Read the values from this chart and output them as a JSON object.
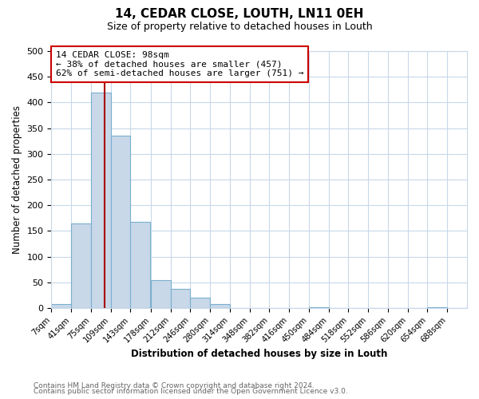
{
  "title": "14, CEDAR CLOSE, LOUTH, LN11 0EH",
  "subtitle": "Size of property relative to detached houses in Louth",
  "xlabel": "Distribution of detached houses by size in Louth",
  "ylabel": "Number of detached properties",
  "bin_labels": [
    "7sqm",
    "41sqm",
    "75sqm",
    "109sqm",
    "143sqm",
    "178sqm",
    "212sqm",
    "246sqm",
    "280sqm",
    "314sqm",
    "348sqm",
    "382sqm",
    "416sqm",
    "450sqm",
    "484sqm",
    "518sqm",
    "552sqm",
    "586sqm",
    "620sqm",
    "654sqm",
    "688sqm"
  ],
  "bin_edges": [
    7,
    41,
    75,
    109,
    143,
    178,
    212,
    246,
    280,
    314,
    348,
    382,
    416,
    450,
    484,
    518,
    552,
    586,
    620,
    654,
    688
  ],
  "bar_values": [
    8,
    165,
    420,
    335,
    168,
    55,
    38,
    20,
    8,
    0,
    0,
    0,
    0,
    2,
    0,
    0,
    0,
    0,
    0,
    2,
    0
  ],
  "bar_color": "#c8d8e8",
  "bar_edge_color": "#7ab0d0",
  "vline_x": 98,
  "vline_color": "#aa0000",
  "ylim": [
    0,
    500
  ],
  "yticks": [
    0,
    50,
    100,
    150,
    200,
    250,
    300,
    350,
    400,
    450,
    500
  ],
  "annotation_title": "14 CEDAR CLOSE: 98sqm",
  "annotation_line1": "← 38% of detached houses are smaller (457)",
  "annotation_line2": "62% of semi-detached houses are larger (751) →",
  "annotation_box_color": "#ffffff",
  "annotation_box_edge": "#cc0000",
  "footer1": "Contains HM Land Registry data © Crown copyright and database right 2024.",
  "footer2": "Contains public sector information licensed under the Open Government Licence v3.0.",
  "background_color": "#ffffff",
  "grid_color": "#c8d8e8"
}
